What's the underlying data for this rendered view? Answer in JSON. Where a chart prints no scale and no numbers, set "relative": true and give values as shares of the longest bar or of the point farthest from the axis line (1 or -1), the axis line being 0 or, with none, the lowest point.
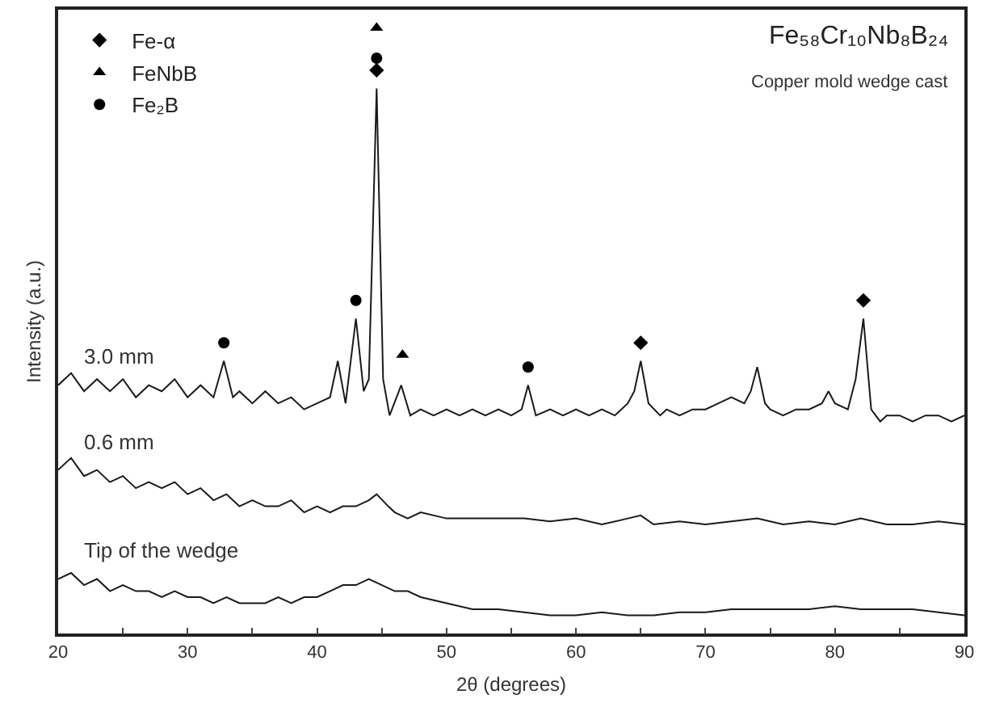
{
  "chart_data": {
    "type": "line",
    "title": "Fe₅₈Cr₁₀Nb₈B₂₄",
    "subtitle": "Copper mold wedge cast",
    "xlabel": "2θ (degrees)",
    "ylabel": "Intensity (a.u.)",
    "relative": true,
    "xlim": [
      20,
      90
    ],
    "xticks": [
      20,
      {
        "value": 25,
        "label": null
      },
      30,
      {
        "value": 35,
        "label": null
      },
      40,
      {
        "value": 45,
        "label": null
      },
      50,
      {
        "value": 55,
        "label": null
      },
      60,
      {
        "value": 65,
        "label": null
      },
      70,
      {
        "value": 75,
        "label": null
      },
      80,
      {
        "value": 85,
        "label": null
      },
      90
    ],
    "grid": false,
    "legend": "top left",
    "line_style": "solid",
    "series": [
      {
        "name": "3.0 mm",
        "color": "#1a1a1a",
        "x": [
          20,
          21,
          22,
          23,
          24,
          25,
          26,
          27,
          28,
          29,
          30,
          31,
          32,
          32.8,
          33.5,
          34,
          35,
          36,
          37,
          38,
          39,
          40,
          41,
          41.6,
          42.2,
          43,
          43.6,
          44.0,
          44.6,
          45.1,
          45.6,
          46.5,
          47.2,
          48,
          49,
          50,
          51,
          52,
          53,
          54,
          55,
          55.8,
          56.3,
          56.9,
          58,
          59,
          60,
          61,
          62,
          63,
          64,
          64.5,
          65,
          65.6,
          66.5,
          67,
          68,
          69,
          70,
          71,
          72,
          73,
          73.5,
          74,
          74.6,
          75,
          76,
          77,
          78,
          79,
          79.5,
          80,
          81,
          81.6,
          82.2,
          82.8,
          83.5,
          84,
          85,
          86,
          87,
          88,
          89,
          90
        ],
        "values": [
          0.41,
          0.43,
          0.4,
          0.42,
          0.4,
          0.42,
          0.39,
          0.41,
          0.4,
          0.42,
          0.39,
          0.41,
          0.39,
          0.45,
          0.39,
          0.4,
          0.38,
          0.4,
          0.38,
          0.39,
          0.37,
          0.38,
          0.39,
          0.45,
          0.38,
          0.52,
          0.4,
          0.42,
          0.9,
          0.42,
          0.36,
          0.41,
          0.36,
          0.37,
          0.36,
          0.37,
          0.36,
          0.37,
          0.36,
          0.37,
          0.36,
          0.37,
          0.41,
          0.36,
          0.37,
          0.36,
          0.37,
          0.36,
          0.37,
          0.36,
          0.38,
          0.4,
          0.45,
          0.38,
          0.36,
          0.37,
          0.36,
          0.37,
          0.37,
          0.38,
          0.39,
          0.38,
          0.4,
          0.44,
          0.38,
          0.37,
          0.36,
          0.37,
          0.37,
          0.38,
          0.4,
          0.38,
          0.37,
          0.42,
          0.52,
          0.37,
          0.35,
          0.36,
          0.36,
          0.35,
          0.36,
          0.36,
          0.35,
          0.36
        ]
      },
      {
        "name": "0.6 mm",
        "color": "#1a1a1a",
        "x": [
          20,
          21,
          22,
          23,
          24,
          25,
          26,
          27,
          28,
          29,
          30,
          31,
          32,
          33,
          34,
          35,
          36,
          37,
          38,
          39,
          40,
          41,
          42,
          43,
          44,
          44.6,
          45.5,
          46,
          47,
          48,
          50,
          52,
          54,
          56,
          58,
          60,
          62,
          64,
          65,
          66,
          68,
          70,
          72,
          74,
          76,
          78,
          80,
          82,
          84,
          86,
          88,
          90
        ],
        "values": [
          0.27,
          0.29,
          0.26,
          0.27,
          0.25,
          0.26,
          0.24,
          0.25,
          0.24,
          0.25,
          0.23,
          0.24,
          0.22,
          0.23,
          0.21,
          0.22,
          0.21,
          0.21,
          0.22,
          0.2,
          0.21,
          0.2,
          0.21,
          0.21,
          0.22,
          0.23,
          0.21,
          0.2,
          0.19,
          0.2,
          0.19,
          0.19,
          0.19,
          0.19,
          0.185,
          0.19,
          0.18,
          0.19,
          0.195,
          0.18,
          0.185,
          0.18,
          0.185,
          0.19,
          0.18,
          0.185,
          0.18,
          0.19,
          0.18,
          0.18,
          0.185,
          0.18
        ]
      },
      {
        "name": "Tip of the wedge",
        "color": "#1a1a1a",
        "x": [
          20,
          21,
          22,
          23,
          24,
          25,
          26,
          27,
          28,
          29,
          30,
          31,
          32,
          33,
          34,
          35,
          36,
          37,
          38,
          39,
          40,
          41,
          42,
          43,
          44,
          45,
          46,
          47,
          48,
          50,
          52,
          54,
          56,
          58,
          60,
          62,
          64,
          66,
          68,
          70,
          72,
          74,
          76,
          78,
          80,
          82,
          84,
          86,
          88,
          90
        ],
        "values": [
          0.09,
          0.1,
          0.08,
          0.09,
          0.07,
          0.08,
          0.07,
          0.07,
          0.06,
          0.07,
          0.06,
          0.06,
          0.05,
          0.06,
          0.05,
          0.05,
          0.05,
          0.06,
          0.05,
          0.06,
          0.06,
          0.07,
          0.08,
          0.08,
          0.09,
          0.08,
          0.07,
          0.07,
          0.06,
          0.05,
          0.04,
          0.04,
          0.035,
          0.03,
          0.03,
          0.035,
          0.03,
          0.03,
          0.035,
          0.035,
          0.04,
          0.04,
          0.04,
          0.04,
          0.045,
          0.04,
          0.04,
          0.04,
          0.035,
          0.03
        ]
      },
      {
        "name": "Fe-α",
        "type": "scatter",
        "marker": "diamond",
        "color": "#000000",
        "x": [
          44.6,
          65,
          82.2
        ],
        "values": [
          0.93,
          0.48,
          0.55
        ]
      },
      {
        "name": "FeNbB",
        "type": "scatter",
        "marker": "triangle",
        "color": "#000000",
        "x": [
          44.6,
          46.6
        ],
        "values": [
          1.0,
          0.46
        ]
      },
      {
        "name": "Fe₂B",
        "type": "scatter",
        "marker": "circle",
        "color": "#000000",
        "x": [
          32.8,
          43,
          44.6,
          56.3
        ],
        "values": [
          0.48,
          0.55,
          0.95,
          0.44
        ]
      }
    ]
  }
}
